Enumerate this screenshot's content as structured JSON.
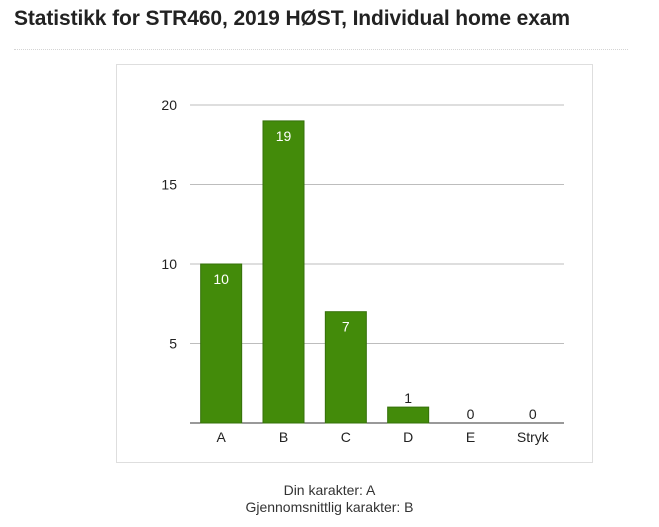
{
  "page": {
    "title": "Statistikk for STR460, 2019 HØST, Individual home exam"
  },
  "summary": {
    "your_grade_label": "Din karakter: A",
    "average_grade_label": "Gjennomsnittlig karakter: B"
  },
  "colors": {
    "bar": "#438b0a",
    "bar_border": "#35700a",
    "label_inside": "#ffffff",
    "label_outside": "#222222",
    "grid": "#bdbdbd",
    "axis": "#333333"
  },
  "chart_data": {
    "type": "bar",
    "title": "",
    "xlabel": "",
    "ylabel": "",
    "categories": [
      "A",
      "B",
      "C",
      "D",
      "E",
      "Stryk"
    ],
    "values": [
      10,
      19,
      7,
      1,
      0,
      0
    ],
    "ylim": [
      0,
      20
    ],
    "yticks": [
      5,
      10,
      15,
      20
    ],
    "grid": true,
    "legend": "none"
  }
}
